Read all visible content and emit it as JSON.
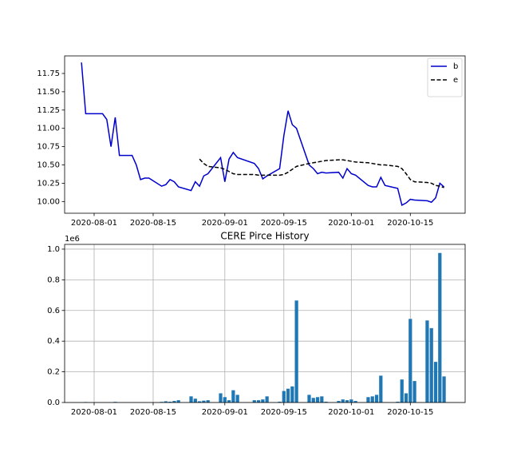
{
  "chart_data": [
    {
      "type": "line",
      "legend": "upper right",
      "grid": false,
      "x": [
        "2020-07-29",
        "2020-07-30",
        "2020-07-31",
        "2020-08-03",
        "2020-08-04",
        "2020-08-05",
        "2020-08-06",
        "2020-08-07",
        "2020-08-10",
        "2020-08-11",
        "2020-08-12",
        "2020-08-13",
        "2020-08-14",
        "2020-08-17",
        "2020-08-18",
        "2020-08-19",
        "2020-08-20",
        "2020-08-21",
        "2020-08-24",
        "2020-08-25",
        "2020-08-26",
        "2020-08-27",
        "2020-08-28",
        "2020-08-31",
        "2020-09-01",
        "2020-09-02",
        "2020-09-03",
        "2020-09-04",
        "2020-09-08",
        "2020-09-09",
        "2020-09-10",
        "2020-09-11",
        "2020-09-14",
        "2020-09-15",
        "2020-09-16",
        "2020-09-17",
        "2020-09-18",
        "2020-09-21",
        "2020-09-22",
        "2020-09-23",
        "2020-09-24",
        "2020-09-25",
        "2020-09-28",
        "2020-09-29",
        "2020-09-30",
        "2020-10-01",
        "2020-10-02",
        "2020-10-05",
        "2020-10-06",
        "2020-10-07",
        "2020-10-08",
        "2020-10-09",
        "2020-10-12",
        "2020-10-13",
        "2020-10-14",
        "2020-10-15",
        "2020-10-16",
        "2020-10-19",
        "2020-10-20",
        "2020-10-21",
        "2020-10-22",
        "2020-10-23"
      ],
      "series": [
        {
          "name": "b",
          "color": "#0000cc",
          "dashed": false,
          "values": [
            11.9,
            11.2,
            11.2,
            11.2,
            11.12,
            10.75,
            11.15,
            10.63,
            10.63,
            10.5,
            10.3,
            10.32,
            10.32,
            10.21,
            10.23,
            10.3,
            10.27,
            10.2,
            10.15,
            10.27,
            10.21,
            10.35,
            10.38,
            10.6,
            10.27,
            10.58,
            10.67,
            10.6,
            10.52,
            10.45,
            10.31,
            10.35,
            10.45,
            10.9,
            11.24,
            11.05,
            11.0,
            10.5,
            10.45,
            10.38,
            10.4,
            10.39,
            10.4,
            10.32,
            10.45,
            10.38,
            10.36,
            10.22,
            10.2,
            10.2,
            10.33,
            10.22,
            10.18,
            9.95,
            9.98,
            10.03,
            10.02,
            10.01,
            9.99,
            10.05,
            10.25,
            10.2
          ]
        },
        {
          "name": "e",
          "color": "#000000",
          "dashed": true,
          "values": [
            null,
            null,
            null,
            null,
            null,
            null,
            null,
            null,
            null,
            null,
            null,
            null,
            null,
            null,
            null,
            null,
            null,
            null,
            null,
            null,
            10.58,
            10.52,
            10.48,
            10.46,
            10.44,
            10.41,
            10.38,
            10.37,
            10.37,
            10.36,
            10.36,
            10.36,
            10.36,
            10.37,
            10.4,
            10.44,
            10.48,
            10.52,
            10.53,
            10.54,
            10.55,
            10.56,
            10.57,
            10.57,
            10.56,
            10.55,
            10.54,
            10.53,
            10.52,
            10.51,
            10.5,
            10.5,
            10.48,
            10.45,
            10.38,
            10.3,
            10.27,
            10.26,
            10.25,
            10.22,
            10.21,
            10.19
          ]
        }
      ],
      "xlim": [
        "2020-07-25",
        "2020-10-28"
      ],
      "xticks": [
        "2020-08-01",
        "2020-08-15",
        "2020-09-01",
        "2020-09-15",
        "2020-10-01",
        "2020-10-15"
      ],
      "ylim": [
        9.84,
        11.99
      ],
      "yticks": [
        {
          "value": 10,
          "label": "10.00"
        },
        {
          "value": 10.25,
          "label": "10.25"
        },
        {
          "value": 10.5,
          "label": "10.50"
        },
        {
          "value": 10.75,
          "label": "10.75"
        },
        {
          "value": 11,
          "label": "11.00"
        },
        {
          "value": 11.25,
          "label": "11.25"
        },
        {
          "value": 11.5,
          "label": "11.50"
        },
        {
          "value": 11.75,
          "label": "11.75"
        }
      ]
    },
    {
      "type": "bar",
      "title": "CERE Pirce History",
      "y_offset_label": "1e6",
      "color": "#1f77b4",
      "grid": true,
      "x": [
        "2020-07-29",
        "2020-07-30",
        "2020-07-31",
        "2020-08-03",
        "2020-08-04",
        "2020-08-05",
        "2020-08-06",
        "2020-08-07",
        "2020-08-10",
        "2020-08-11",
        "2020-08-12",
        "2020-08-13",
        "2020-08-14",
        "2020-08-17",
        "2020-08-18",
        "2020-08-19",
        "2020-08-20",
        "2020-08-21",
        "2020-08-24",
        "2020-08-25",
        "2020-08-26",
        "2020-08-27",
        "2020-08-28",
        "2020-08-31",
        "2020-09-01",
        "2020-09-02",
        "2020-09-03",
        "2020-09-04",
        "2020-09-08",
        "2020-09-09",
        "2020-09-10",
        "2020-09-11",
        "2020-09-14",
        "2020-09-15",
        "2020-09-16",
        "2020-09-17",
        "2020-09-18",
        "2020-09-21",
        "2020-09-22",
        "2020-09-23",
        "2020-09-24",
        "2020-09-25",
        "2020-09-28",
        "2020-09-29",
        "2020-09-30",
        "2020-10-01",
        "2020-10-02",
        "2020-10-05",
        "2020-10-06",
        "2020-10-07",
        "2020-10-08",
        "2020-10-09",
        "2020-10-12",
        "2020-10-13",
        "2020-10-14",
        "2020-10-15",
        "2020-10-16",
        "2020-10-19",
        "2020-10-20",
        "2020-10-21",
        "2020-10-22",
        "2020-10-23"
      ],
      "values": [
        0,
        0.003,
        0,
        0,
        0,
        0,
        0.004,
        0,
        0,
        0,
        0,
        0,
        0,
        0.004,
        0.008,
        0.005,
        0.01,
        0.015,
        0.04,
        0.025,
        0.008,
        0.012,
        0.015,
        0.06,
        0.035,
        0.015,
        0.08,
        0.05,
        0.015,
        0.015,
        0.02,
        0.04,
        0.005,
        0.075,
        0.09,
        0.105,
        0.665,
        0.05,
        0.03,
        0.035,
        0.04,
        0.005,
        0.01,
        0.02,
        0.015,
        0.02,
        0.01,
        0.035,
        0.04,
        0.05,
        0.175,
        0.002,
        0.005,
        0.15,
        0.06,
        0.545,
        0.14,
        0.535,
        0.485,
        0.265,
        0.975,
        0.17
      ],
      "xlim": [
        "2020-07-25",
        "2020-10-28"
      ],
      "xticks": [
        "2020-08-01",
        "2020-08-15",
        "2020-09-01",
        "2020-09-15",
        "2020-10-01",
        "2020-10-15"
      ],
      "ylim": [
        0,
        1.031
      ],
      "yticks": [
        {
          "value": 0,
          "label": "0.0"
        },
        {
          "value": 0.2,
          "label": "0.2"
        },
        {
          "value": 0.4,
          "label": "0.4"
        },
        {
          "value": 0.6,
          "label": "0.6"
        },
        {
          "value": 0.8,
          "label": "0.8"
        },
        {
          "value": 1.0,
          "label": "1.0"
        }
      ]
    }
  ]
}
